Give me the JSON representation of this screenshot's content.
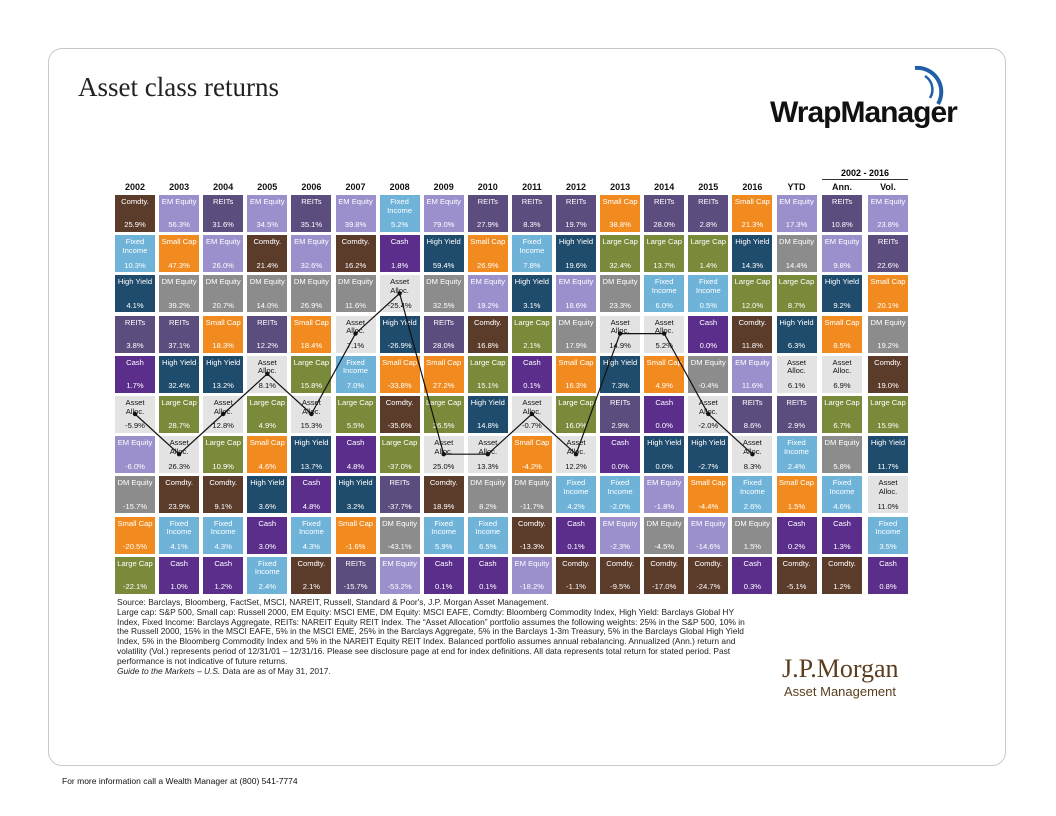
{
  "header": {
    "title": "Asset class returns",
    "logo": "WrapManager",
    "span_label": "2002 - 2016"
  },
  "table": {
    "classes": {
      "Comdty.": {
        "fill": "#5b3b2a",
        "text": "#ffffff"
      },
      "Fixed Income": {
        "fill": "#6fb3d9",
        "text": "#ffffff"
      },
      "High Yield": {
        "fill": "#1f4b6c",
        "text": "#ffffff"
      },
      "REITs": {
        "fill": "#5b4d7e",
        "text": "#ffffff"
      },
      "Cash": {
        "fill": "#5b2e8c",
        "text": "#ffffff"
      },
      "Asset Alloc.": {
        "fill": "#e3e3e3",
        "text": "#111111",
        "line": true
      },
      "EM Equity": {
        "fill": "#9b90cc",
        "text": "#ffffff"
      },
      "DM Equity": {
        "fill": "#8c8c8c",
        "text": "#ffffff"
      },
      "Small Cap": {
        "fill": "#f28b1f",
        "text": "#ffffff"
      },
      "Large Cap": {
        "fill": "#7a8a3b",
        "text": "#ffffff"
      }
    },
    "columns": [
      {
        "header": "2002",
        "cells": [
          [
            "Comdty.",
            "25.9%"
          ],
          [
            "Fixed Income",
            "10.3%"
          ],
          [
            "High Yield",
            "4.1%"
          ],
          [
            "REITs",
            "3.8%"
          ],
          [
            "Cash",
            "1.7%"
          ],
          [
            "Asset Alloc.",
            "-5.9%"
          ],
          [
            "EM Equity",
            "-6.0%"
          ],
          [
            "DM Equity",
            "-15.7%"
          ],
          [
            "Small Cap",
            "-20.5%"
          ],
          [
            "Large Cap",
            "-22.1%"
          ]
        ]
      },
      {
        "header": "2003",
        "cells": [
          [
            "EM Equity",
            "56.3%"
          ],
          [
            "Small Cap",
            "47.3%"
          ],
          [
            "DM Equity",
            "39.2%"
          ],
          [
            "REITs",
            "37.1%"
          ],
          [
            "High Yield",
            "32.4%"
          ],
          [
            "Large Cap",
            "28.7%"
          ],
          [
            "Asset Alloc.",
            "26.3%"
          ],
          [
            "Comdty.",
            "23.9%"
          ],
          [
            "Fixed Income",
            "4.1%"
          ],
          [
            "Cash",
            "1.0%"
          ]
        ]
      },
      {
        "header": "2004",
        "cells": [
          [
            "REITs",
            "31.6%"
          ],
          [
            "EM Equity",
            "26.0%"
          ],
          [
            "DM Equity",
            "20.7%"
          ],
          [
            "Small Cap",
            "18.3%"
          ],
          [
            "High Yield",
            "13.2%"
          ],
          [
            "Asset Alloc.",
            "12.8%"
          ],
          [
            "Large Cap",
            "10.9%"
          ],
          [
            "Comdty.",
            "9.1%"
          ],
          [
            "Fixed Income",
            "4.3%"
          ],
          [
            "Cash",
            "1.2%"
          ]
        ]
      },
      {
        "header": "2005",
        "cells": [
          [
            "EM Equity",
            "34.5%"
          ],
          [
            "Comdty.",
            "21.4%"
          ],
          [
            "DM Equity",
            "14.0%"
          ],
          [
            "REITs",
            "12.2%"
          ],
          [
            "Asset Alloc.",
            "8.1%"
          ],
          [
            "Large Cap",
            "4.9%"
          ],
          [
            "Small Cap",
            "4.6%"
          ],
          [
            "High Yield",
            "3.6%"
          ],
          [
            "Cash",
            "3.0%"
          ],
          [
            "Fixed Income",
            "2.4%"
          ]
        ]
      },
      {
        "header": "2006",
        "cells": [
          [
            "REITs",
            "35.1%"
          ],
          [
            "EM Equity",
            "32.6%"
          ],
          [
            "DM Equity",
            "26.9%"
          ],
          [
            "Small Cap",
            "18.4%"
          ],
          [
            "Large Cap",
            "15.8%"
          ],
          [
            "Asset Alloc.",
            "15.3%"
          ],
          [
            "High Yield",
            "13.7%"
          ],
          [
            "Cash",
            "4.8%"
          ],
          [
            "Fixed Income",
            "4.3%"
          ],
          [
            "Comdty.",
            "2.1%"
          ]
        ]
      },
      {
        "header": "2007",
        "cells": [
          [
            "EM Equity",
            "39.8%"
          ],
          [
            "Comdty.",
            "16.2%"
          ],
          [
            "DM Equity",
            "11.6%"
          ],
          [
            "Asset Alloc.",
            "7.1%"
          ],
          [
            "Fixed Income",
            "7.0%"
          ],
          [
            "Large Cap",
            "5.5%"
          ],
          [
            "Cash",
            "4.8%"
          ],
          [
            "High Yield",
            "3.2%"
          ],
          [
            "Small Cap",
            "-1.6%"
          ],
          [
            "REITs",
            "-15.7%"
          ]
        ]
      },
      {
        "header": "2008",
        "cells": [
          [
            "Fixed Income",
            "5.2%"
          ],
          [
            "Cash",
            "1.8%"
          ],
          [
            "Asset Alloc.",
            "-25.4%"
          ],
          [
            "High Yield",
            "-26.9%"
          ],
          [
            "Small Cap",
            "-33.8%"
          ],
          [
            "Comdty.",
            "-35.6%"
          ],
          [
            "Large Cap",
            "-37.0%"
          ],
          [
            "REITs",
            "-37.7%"
          ],
          [
            "DM Equity",
            "-43.1%"
          ],
          [
            "EM Equity",
            "-53.2%"
          ]
        ]
      },
      {
        "header": "2009",
        "cells": [
          [
            "EM Equity",
            "79.0%"
          ],
          [
            "High Yield",
            "59.4%"
          ],
          [
            "DM Equity",
            "32.5%"
          ],
          [
            "REITs",
            "28.0%"
          ],
          [
            "Small Cap",
            "27.2%"
          ],
          [
            "Large Cap",
            "26.5%"
          ],
          [
            "Asset Alloc.",
            "25.0%"
          ],
          [
            "Comdty.",
            "18.9%"
          ],
          [
            "Fixed Income",
            "5.9%"
          ],
          [
            "Cash",
            "0.1%"
          ]
        ]
      },
      {
        "header": "2010",
        "cells": [
          [
            "REITs",
            "27.9%"
          ],
          [
            "Small Cap",
            "26.9%"
          ],
          [
            "EM Equity",
            "19.2%"
          ],
          [
            "Comdty.",
            "16.8%"
          ],
          [
            "Large Cap",
            "15.1%"
          ],
          [
            "High Yield",
            "14.8%"
          ],
          [
            "Asset Alloc.",
            "13.3%"
          ],
          [
            "DM Equity",
            "8.2%"
          ],
          [
            "Fixed Income",
            "6.5%"
          ],
          [
            "Cash",
            "0.1%"
          ]
        ]
      },
      {
        "header": "2011",
        "cells": [
          [
            "REITs",
            "8.3%"
          ],
          [
            "Fixed Income",
            "7.8%"
          ],
          [
            "High Yield",
            "3.1%"
          ],
          [
            "Large Cap",
            "2.1%"
          ],
          [
            "Cash",
            "0.1%"
          ],
          [
            "Asset Alloc.",
            "-0.7%"
          ],
          [
            "Small Cap",
            "-4.2%"
          ],
          [
            "DM Equity",
            "-11.7%"
          ],
          [
            "Comdty.",
            "-13.3%"
          ],
          [
            "EM Equity",
            "-18.2%"
          ]
        ]
      },
      {
        "header": "2012",
        "cells": [
          [
            "REITs",
            "19.7%"
          ],
          [
            "High Yield",
            "19.6%"
          ],
          [
            "EM Equity",
            "18.6%"
          ],
          [
            "DM Equity",
            "17.9%"
          ],
          [
            "Small Cap",
            "16.3%"
          ],
          [
            "Large Cap",
            "16.0%"
          ],
          [
            "Asset Alloc.",
            "12.2%"
          ],
          [
            "Fixed Income",
            "4.2%"
          ],
          [
            "Cash",
            "0.1%"
          ],
          [
            "Comdty.",
            "-1.1%"
          ]
        ]
      },
      {
        "header": "2013",
        "cells": [
          [
            "Small Cap",
            "38.8%"
          ],
          [
            "Large Cap",
            "32.4%"
          ],
          [
            "DM Equity",
            "23.3%"
          ],
          [
            "Asset Alloc.",
            "14.9%"
          ],
          [
            "High Yield",
            "7.3%"
          ],
          [
            "REITs",
            "2.9%"
          ],
          [
            "Cash",
            "0.0%"
          ],
          [
            "Fixed Income",
            "-2.0%"
          ],
          [
            "EM Equity",
            "-2.3%"
          ],
          [
            "Comdty.",
            "-9.5%"
          ]
        ]
      },
      {
        "header": "2014",
        "cells": [
          [
            "REITs",
            "28.0%"
          ],
          [
            "Large Cap",
            "13.7%"
          ],
          [
            "Fixed Income",
            "6.0%"
          ],
          [
            "Asset Alloc.",
            "5.2%"
          ],
          [
            "Small Cap",
            "4.9%"
          ],
          [
            "Cash",
            "0.0%"
          ],
          [
            "High Yield",
            "0.0%"
          ],
          [
            "EM Equity",
            "-1.8%"
          ],
          [
            "DM Equity",
            "-4.5%"
          ],
          [
            "Comdty.",
            "-17.0%"
          ]
        ]
      },
      {
        "header": "2015",
        "cells": [
          [
            "REITs",
            "2.8%"
          ],
          [
            "Large Cap",
            "1.4%"
          ],
          [
            "Fixed Income",
            "0.5%"
          ],
          [
            "Cash",
            "0.0%"
          ],
          [
            "DM Equity",
            "-0.4%"
          ],
          [
            "Asset Alloc.",
            "-2.0%"
          ],
          [
            "High Yield",
            "-2.7%"
          ],
          [
            "Small Cap",
            "-4.4%"
          ],
          [
            "EM Equity",
            "-14.6%"
          ],
          [
            "Comdty.",
            "-24.7%"
          ]
        ]
      },
      {
        "header": "2016",
        "cells": [
          [
            "Small Cap",
            "21.3%"
          ],
          [
            "High Yield",
            "14.3%"
          ],
          [
            "Large Cap",
            "12.0%"
          ],
          [
            "Comdty.",
            "11.8%"
          ],
          [
            "EM Equity",
            "11.6%"
          ],
          [
            "REITs",
            "8.6%"
          ],
          [
            "Asset Alloc.",
            "8.3%"
          ],
          [
            "Fixed Income",
            "2.6%"
          ],
          [
            "DM Equity",
            "1.5%"
          ],
          [
            "Cash",
            "0.3%"
          ]
        ]
      },
      {
        "header": "YTD",
        "cells": [
          [
            "EM Equity",
            "17.3%"
          ],
          [
            "DM Equity",
            "14.4%"
          ],
          [
            "Large Cap",
            "8.7%"
          ],
          [
            "High Yield",
            "6.3%"
          ],
          [
            "Asset Alloc.",
            "6.1%"
          ],
          [
            "REITs",
            "2.9%"
          ],
          [
            "Fixed Income",
            "2.4%"
          ],
          [
            "Small Cap",
            "1.5%"
          ],
          [
            "Cash",
            "0.2%"
          ],
          [
            "Comdty.",
            "-5.1%"
          ]
        ]
      },
      {
        "header": "Ann.",
        "cells": [
          [
            "REITs",
            "10.8%"
          ],
          [
            "EM Equity",
            "9.8%"
          ],
          [
            "High Yield",
            "9.2%"
          ],
          [
            "Small Cap",
            "8.5%"
          ],
          [
            "Asset Alloc.",
            "6.9%"
          ],
          [
            "Large Cap",
            "6.7%"
          ],
          [
            "DM Equity",
            "5.8%"
          ],
          [
            "Fixed Income",
            "4.6%"
          ],
          [
            "Cash",
            "1.3%"
          ],
          [
            "Comdty.",
            "1.2%"
          ]
        ]
      },
      {
        "header": "Vol.",
        "cells": [
          [
            "EM Equity",
            "23.8%"
          ],
          [
            "REITs",
            "22.6%"
          ],
          [
            "Small Cap",
            "20.1%"
          ],
          [
            "DM Equity",
            "19.2%"
          ],
          [
            "Comdty.",
            "19.0%"
          ],
          [
            "Large Cap",
            "15.9%"
          ],
          [
            "High Yield",
            "11.7%"
          ],
          [
            "Asset Alloc.",
            "11.0%"
          ],
          [
            "Fixed Income",
            "3.5%"
          ],
          [
            "Cash",
            "0.8%"
          ]
        ]
      }
    ]
  },
  "notes": {
    "source": "Source: Barclays, Bloomberg, FactSet, MSCI, NAREIT, Russell, Standard & Poor's, J.P. Morgan Asset Management.",
    "body": "Large cap: S&P 500, Small cap: Russell 2000, EM Equity: MSCI EME, DM Equity: MSCI EAFE, Comdty: Bloomberg Commodity Index, High Yield: Barclays Global HY Index, Fixed Income: Barclays Aggregate, REITs: NAREIT Equity REIT Index. The “Asset Allocation” portfolio assumes the following weights: 25% in the S&P 500, 10% in the Russell 2000, 15% in the MSCI EAFE, 5% in the MSCI EME, 25% in the Barclays Aggregate, 5% in the Barclays 1-3m Treasury, 5% in the Barclays Global High Yield Index, 5% in the Bloomberg Commodity Index and 5% in the NAREIT Equity REIT Index. Balanced portfolio assumes annual rebalancing. Annualized (Ann.) return and volatility (Vol.) represents period of 12/31/01 – 12/31/16. Please see disclosure page at end for index definitions. All data represents total return for stated period. Past performance is not indicative of future returns.",
    "guide": "Guide to the Markets – U.S.",
    "date": "Data are as of May 31, 2017."
  },
  "brand": {
    "name": "J.P.Morgan",
    "sub": "Asset Management"
  },
  "footer": "For more information call a Wealth Manager at (800) 541-7774"
}
